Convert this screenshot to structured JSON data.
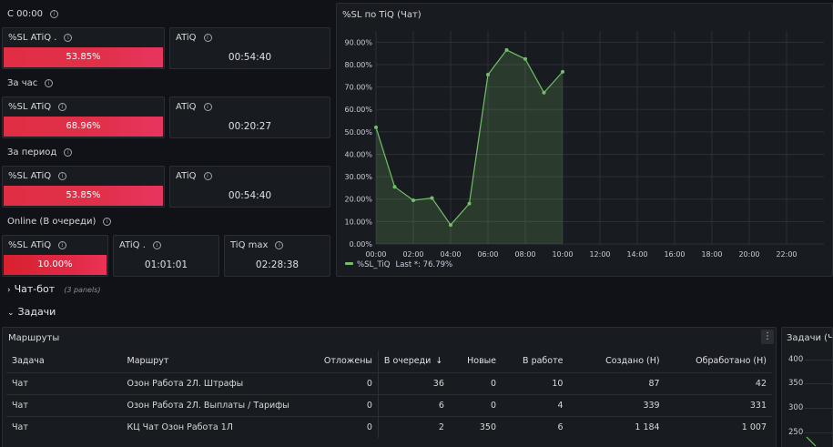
{
  "sections": {
    "since_midnight": "С 00:00",
    "per_hour": "За час",
    "per_period": "За период",
    "online": "Online (В очереди)"
  },
  "stats": {
    "row1": {
      "sl_title": "%SL ATiQ .",
      "sl_value": "53.85%",
      "atiq_title": "ATiQ",
      "atiq_value": "00:54:40"
    },
    "row2": {
      "sl_title": "%SL ATiQ",
      "sl_value": "68.96%",
      "atiq_title": "ATiQ",
      "atiq_value": "00:20:27"
    },
    "row3": {
      "sl_title": "%SL ATiQ",
      "sl_value": "53.85%",
      "atiq_title": "ATiQ",
      "atiq_value": "00:54:40"
    },
    "row4": {
      "sl_title": "%SL ATiQ",
      "sl_value": "10.00%",
      "atiq_title": "ATiQ .",
      "atiq_value": "01:01:01",
      "tiqmax_title": "TiQ max",
      "tiqmax_value": "02:28:38"
    }
  },
  "chart_panel_title": "%SL по TiQ (Чат)",
  "legend": {
    "series": "%SL_TiQ",
    "last": "Last *: 76.79%"
  },
  "chart_data": {
    "type": "area",
    "title": "%SL по TiQ (Чат)",
    "x_ticks": [
      "00:00",
      "02:00",
      "04:00",
      "06:00",
      "08:00",
      "10:00",
      "12:00",
      "14:00",
      "16:00",
      "18:00",
      "20:00",
      "22:00"
    ],
    "y_ticks": [
      "0.00%",
      "10.00%",
      "20.00%",
      "30.00%",
      "40.00%",
      "50.00%",
      "60.00%",
      "70.00%",
      "80.00%",
      "90.00%"
    ],
    "ylim": [
      0,
      95
    ],
    "xlim": [
      0,
      24
    ],
    "x": [
      0,
      1,
      2,
      3,
      4,
      5,
      6,
      7,
      8,
      9,
      10
    ],
    "values": [
      52,
      25.5,
      19.5,
      20.5,
      8.5,
      18,
      75.5,
      86.5,
      82.5,
      67.5,
      76.79
    ],
    "series": [
      {
        "name": "%SL_TiQ",
        "color": "#73bf69"
      }
    ]
  },
  "rows": {
    "chatbot": {
      "title": "Чат-бот",
      "count": "(3 panels)"
    },
    "tasks": {
      "title": "Задачи"
    }
  },
  "routes": {
    "title": "Маршруты",
    "columns": [
      "Задача",
      "Маршрут",
      "Отложены",
      "В очереди",
      "Новые",
      "В работе",
      "Создано (Н)",
      "Обработано (Н)"
    ],
    "sort_icon": "arrow-down-icon",
    "rows": [
      [
        "Чат",
        "Озон Работа 2Л. Штрафы",
        "0",
        "36",
        "0",
        "10",
        "87",
        "42"
      ],
      [
        "Чат",
        "Озон Работа 2Л. Выплаты / Тарифы",
        "0",
        "6",
        "0",
        "4",
        "339",
        "331"
      ],
      [
        "Чат",
        "КЦ Чат Озон Работа 1Л",
        "0",
        "2",
        "350",
        "6",
        "1 184",
        "1 007"
      ]
    ]
  },
  "tasks_panel": {
    "title": "Задачи (Чат)",
    "y_ticks": [
      "400",
      "350",
      "300",
      "250"
    ]
  },
  "colors": {
    "red": "#e02f44",
    "green": "#73bf69",
    "bg": "#111217",
    "panel": "#181b1f"
  }
}
